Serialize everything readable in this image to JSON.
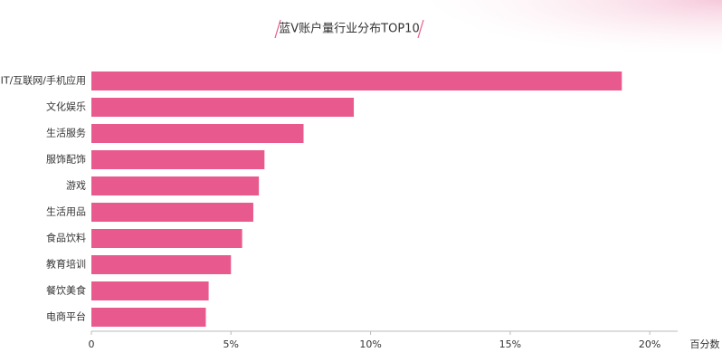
{
  "chart_data": {
    "type": "bar",
    "orientation": "horizontal",
    "title": "蓝V账户量行业分布TOP10",
    "x_label": "百分数",
    "categories": [
      "IT/互联网/手机应用",
      "文化娱乐",
      "生活服务",
      "服饰配饰",
      "游戏",
      "生活用品",
      "食品饮料",
      "教育培训",
      "餐饮美食",
      "电商平台"
    ],
    "values": [
      19.0,
      9.4,
      7.6,
      6.2,
      6.0,
      5.8,
      5.4,
      5.0,
      4.2,
      4.1
    ],
    "color": "#e85a8e",
    "xlim": [
      0,
      21
    ],
    "xticks": [
      0,
      {
        "value": 5,
        "label": "5%"
      },
      {
        "value": 10,
        "label": "10%"
      },
      {
        "value": 15,
        "label": "15%"
      },
      {
        "value": 20,
        "label": "20%"
      }
    ]
  }
}
